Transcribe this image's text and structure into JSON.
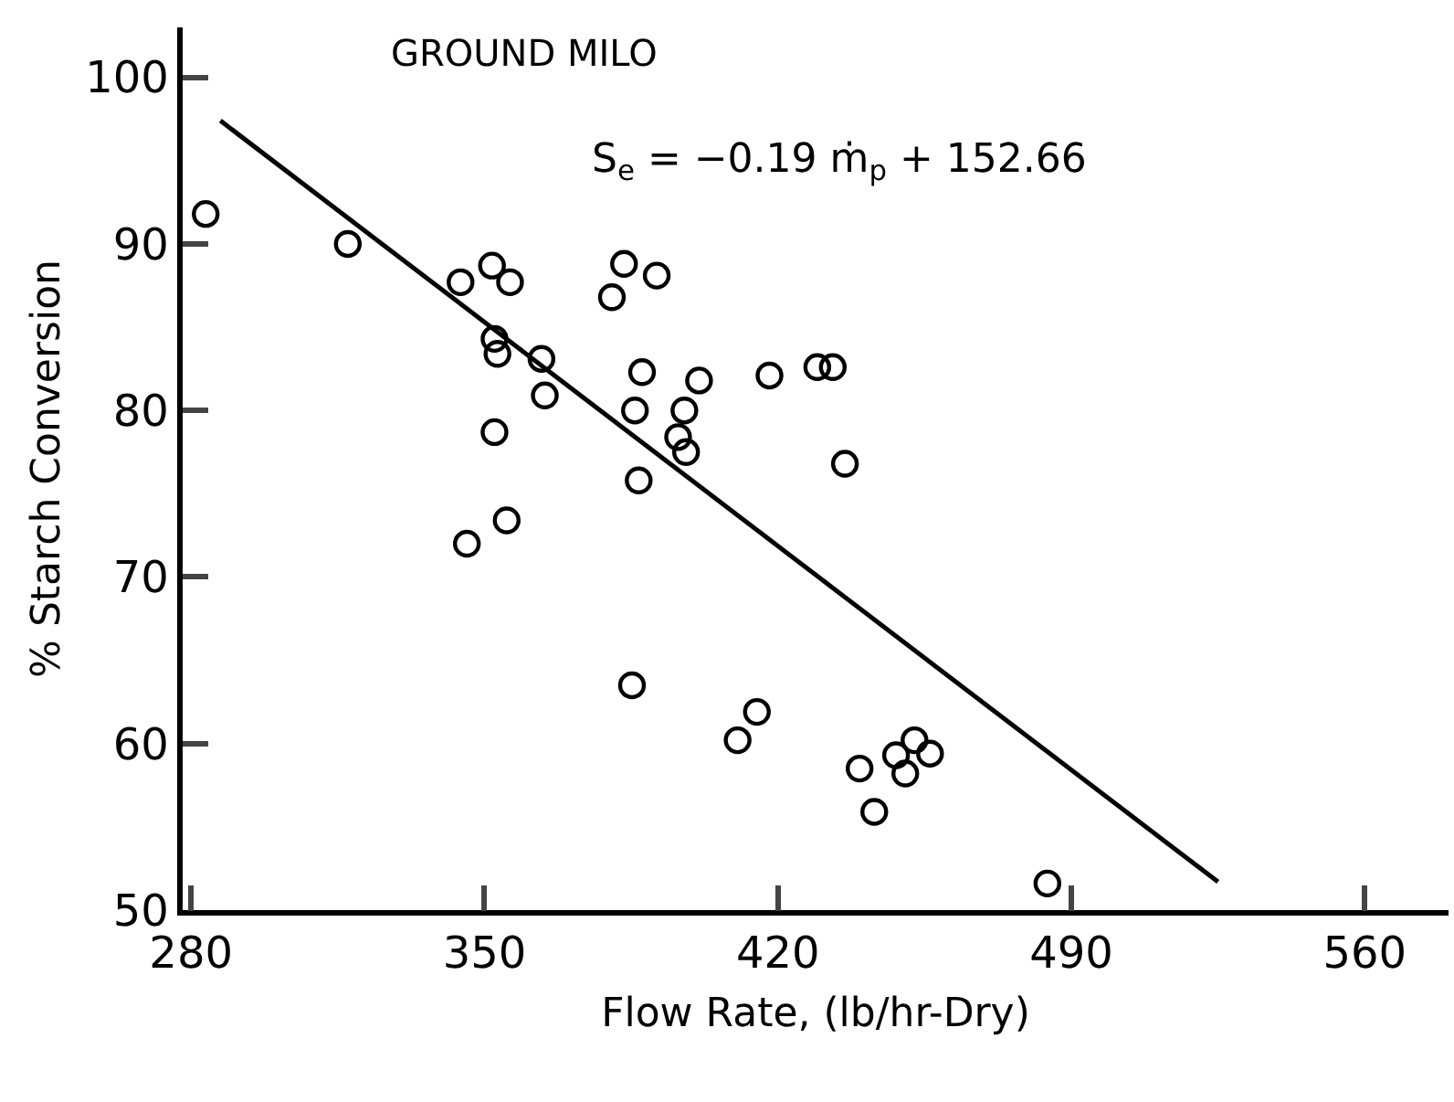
{
  "chart_data": {
    "type": "scatter",
    "title": "GROUND MILO",
    "xlabel": "Flow Rate, (lb/hr-Dry)",
    "ylabel": "% Starch Conversion",
    "annotations": [
      "S$_{e}$ = −0.19 ṁ$_{p}$ + 152.66"
    ],
    "xlim": [
      278,
      580
    ],
    "xticks": [
      280,
      350,
      420,
      490,
      560
    ],
    "ylim": [
      50,
      103
    ],
    "yticks": [
      50,
      60,
      70,
      80,
      90,
      100
    ],
    "grid": false,
    "legend": false,
    "series": [
      {
        "marker": "circle",
        "color": "#000000",
        "x": [
          283.5,
          317.4,
          344.3,
          351.8,
          356.1,
          352.4,
          353.1,
          363.6,
          364.4,
          352.4,
          355.3,
          345.8,
          380.4,
          383.3,
          391.1,
          387.6,
          385.9,
          386.8,
          397.7,
          396.2,
          398.1,
          401.2,
          418.0,
          429.4,
          433.1,
          436.0,
          385.2,
          410.4,
          415.0,
          439.5,
          443.0,
          448.2,
          450.4,
          452.6,
          456.3,
          484.3
        ],
        "values": [
          91.8,
          90.0,
          87.7,
          88.7,
          87.7,
          84.3,
          83.4,
          83.1,
          80.9,
          78.7,
          73.4,
          72.0,
          86.8,
          88.8,
          88.1,
          82.3,
          80.0,
          75.8,
          80.0,
          78.4,
          77.5,
          81.8,
          82.1,
          82.6,
          82.6,
          76.8,
          63.5,
          60.2,
          61.9,
          58.5,
          55.9,
          59.3,
          58.2,
          60.2,
          59.4,
          51.6
        ]
      },
      {
        "type": "line",
        "color": "#000000",
        "x": [
          287,
          525
        ],
        "values": [
          97.4,
          51.7
        ],
        "line_style": "solid"
      }
    ]
  }
}
